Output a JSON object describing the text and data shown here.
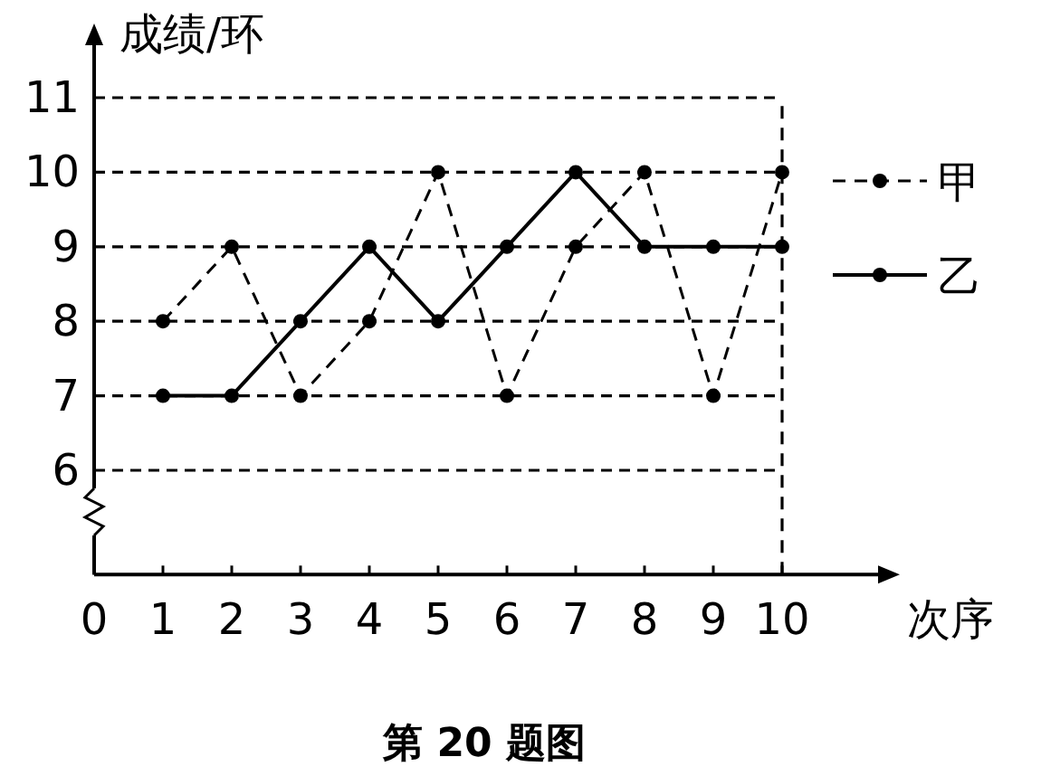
{
  "chart_data": {
    "type": "line",
    "title": "第 20 题图",
    "xlabel": "次序",
    "ylabel": "成绩/环",
    "x": [
      1,
      2,
      3,
      4,
      5,
      6,
      7,
      8,
      9,
      10
    ],
    "xlim": [
      0,
      11.5
    ],
    "xticks": [
      0,
      1,
      2,
      3,
      4,
      5,
      6,
      7,
      8,
      9,
      10
    ],
    "ylim": [
      4.6,
      11.8
    ],
    "yticks": [
      6,
      7,
      8,
      9,
      10,
      11
    ],
    "grid": "y",
    "legend": "right",
    "marker": "circle",
    "ref_lines": [
      {
        "axis": "x",
        "value": 10,
        "line_style": "dashed"
      }
    ],
    "series": [
      {
        "name": "甲",
        "color": "#000000",
        "line_style": "dashed",
        "values": [
          8,
          9,
          7,
          8,
          10,
          7,
          9,
          10,
          7,
          10
        ]
      },
      {
        "name": "乙",
        "color": "#000000",
        "line_style": "solid",
        "values": [
          7,
          7,
          8,
          9,
          8,
          9,
          10,
          9,
          9,
          9
        ]
      }
    ]
  }
}
